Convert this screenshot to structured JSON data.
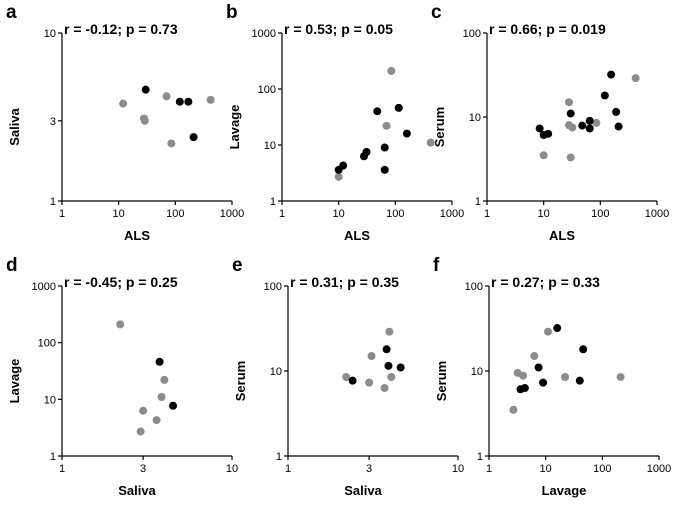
{
  "chart_data": [
    {
      "type": "scatter",
      "panel": "a",
      "title": "r = -0.12; p = 0.73",
      "xlabel": "ALS",
      "ylabel": "Saliva",
      "xscale": "log",
      "yscale": "log",
      "xlim": [
        1,
        1000
      ],
      "ylim": [
        1,
        10
      ],
      "xticks": [
        1,
        10,
        100,
        1000
      ],
      "xtick_labels": [
        "1",
        "10",
        "100",
        "1000"
      ],
      "yticks": [
        1,
        3,
        10
      ],
      "ytick_labels": [
        "1",
        "3",
        "10"
      ],
      "series": [
        {
          "name": "black",
          "color": "#000000",
          "points": [
            [
              30,
              4.6
            ],
            [
              120,
              3.9
            ],
            [
              170,
              3.9
            ],
            [
              210,
              2.4
            ]
          ]
        },
        {
          "name": "gray",
          "color": "#8c8c8c",
          "points": [
            [
              12,
              3.8
            ],
            [
              28,
              3.1
            ],
            [
              29,
              3.0
            ],
            [
              70,
              4.2
            ],
            [
              85,
              2.2
            ],
            [
              420,
              4.0
            ]
          ]
        }
      ]
    },
    {
      "type": "scatter",
      "panel": "b",
      "title": "r = 0.53; p = 0.05",
      "xlabel": "ALS",
      "ylabel": "Lavage",
      "xscale": "log",
      "yscale": "log",
      "xlim": [
        1,
        1000
      ],
      "ylim": [
        1,
        1000
      ],
      "xticks": [
        1,
        10,
        100,
        1000
      ],
      "xtick_labels": [
        "1",
        "10",
        "100",
        "1000"
      ],
      "yticks": [
        1,
        10,
        100,
        1000
      ],
      "ytick_labels": [
        "1",
        "10",
        "100",
        "1000"
      ],
      "series": [
        {
          "name": "black",
          "color": "#000000",
          "points": [
            [
              10,
              3.6
            ],
            [
              12,
              4.3
            ],
            [
              28,
              6.3
            ],
            [
              31,
              7.5
            ],
            [
              48,
              40
            ],
            [
              65,
              9
            ],
            [
              65,
              3.6
            ],
            [
              115,
              46
            ],
            [
              160,
              16
            ]
          ]
        },
        {
          "name": "gray",
          "color": "#8c8c8c",
          "points": [
            [
              10,
              2.7
            ],
            [
              70,
              22
            ],
            [
              85,
              210
            ],
            [
              420,
              11
            ]
          ]
        }
      ]
    },
    {
      "type": "scatter",
      "panel": "c",
      "title": "r = 0.66; p = 0.019",
      "xlabel": "ALS",
      "ylabel": "Serum",
      "xscale": "log",
      "yscale": "log",
      "xlim": [
        1,
        1000
      ],
      "ylim": [
        1,
        100
      ],
      "xticks": [
        1,
        10,
        100,
        1000
      ],
      "xtick_labels": [
        "1",
        "10",
        "100",
        "1000"
      ],
      "yticks": [
        1,
        10,
        100
      ],
      "ytick_labels": [
        "1",
        "10",
        "100"
      ],
      "series": [
        {
          "name": "black",
          "color": "#000000",
          "points": [
            [
              8.5,
              7.3
            ],
            [
              10,
              6.1
            ],
            [
              12,
              6.3
            ],
            [
              30,
              11
            ],
            [
              48,
              7.9
            ],
            [
              65,
              9
            ],
            [
              65,
              7.3
            ],
            [
              120,
              18
            ],
            [
              155,
              32
            ],
            [
              190,
              11.5
            ],
            [
              210,
              7.7
            ]
          ]
        },
        {
          "name": "gray",
          "color": "#8c8c8c",
          "points": [
            [
              10,
              3.5
            ],
            [
              28,
              15
            ],
            [
              28,
              8
            ],
            [
              30,
              3.3
            ],
            [
              32,
              7.5
            ],
            [
              85,
              8.5
            ],
            [
              420,
              29
            ]
          ]
        }
      ]
    },
    {
      "type": "scatter",
      "panel": "d",
      "title": "r = -0.45; p = 0.25",
      "xlabel": "Saliva",
      "ylabel": "Lavage",
      "xscale": "log",
      "yscale": "log",
      "xlim": [
        1,
        10
      ],
      "ylim": [
        1,
        1000
      ],
      "xticks": [
        1,
        3,
        10
      ],
      "xtick_labels": [
        "1",
        "3",
        "10"
      ],
      "yticks": [
        1,
        10,
        100,
        1000
      ],
      "ytick_labels": [
        "1",
        "10",
        "100",
        "1000"
      ],
      "series": [
        {
          "name": "black",
          "color": "#000000",
          "points": [
            [
              3.75,
              46
            ],
            [
              4.5,
              7.7
            ]
          ]
        },
        {
          "name": "gray",
          "color": "#8c8c8c",
          "points": [
            [
              2.2,
              210
            ],
            [
              2.9,
              2.7
            ],
            [
              3.0,
              6.3
            ],
            [
              3.6,
              4.3
            ],
            [
              3.85,
              11
            ],
            [
              4.0,
              22
            ]
          ]
        }
      ]
    },
    {
      "type": "scatter",
      "panel": "e",
      "title": "r = 0.31; p = 0.35",
      "xlabel": "Saliva",
      "ylabel": "Serum",
      "xscale": "log",
      "yscale": "log",
      "xlim": [
        1,
        10
      ],
      "ylim": [
        1,
        100
      ],
      "xticks": [
        1,
        3,
        10
      ],
      "xtick_labels": [
        "1",
        "3",
        "10"
      ],
      "yticks": [
        1,
        10,
        100
      ],
      "ytick_labels": [
        "1",
        "10",
        "100"
      ],
      "series": [
        {
          "name": "black",
          "color": "#000000",
          "points": [
            [
              2.4,
              7.7
            ],
            [
              3.8,
              18
            ],
            [
              3.9,
              11.5
            ],
            [
              4.6,
              11
            ]
          ]
        },
        {
          "name": "gray",
          "color": "#8c8c8c",
          "points": [
            [
              2.2,
              8.5
            ],
            [
              3.0,
              7.3
            ],
            [
              3.1,
              15
            ],
            [
              3.7,
              6.3
            ],
            [
              3.95,
              29
            ],
            [
              4.05,
              8.5
            ]
          ]
        }
      ]
    },
    {
      "type": "scatter",
      "panel": "f",
      "title": "r = 0.27; p = 0.33",
      "xlabel": "Lavage",
      "ylabel": "Serum",
      "xscale": "log",
      "yscale": "log",
      "xlim": [
        1,
        1000
      ],
      "ylim": [
        1,
        100
      ],
      "xticks": [
        1,
        10,
        100,
        1000
      ],
      "xtick_labels": [
        "1",
        "10",
        "100",
        "1000"
      ],
      "yticks": [
        1,
        10,
        100
      ],
      "ytick_labels": [
        "1",
        "10",
        "100"
      ],
      "series": [
        {
          "name": "black",
          "color": "#000000",
          "points": [
            [
              3.6,
              6.1
            ],
            [
              4.3,
              6.3
            ],
            [
              7.5,
              11
            ],
            [
              9,
              7.3
            ],
            [
              16,
              32
            ],
            [
              40,
              7.7
            ],
            [
              46,
              18
            ]
          ]
        },
        {
          "name": "gray",
          "color": "#8c8c8c",
          "points": [
            [
              2.7,
              3.5
            ],
            [
              3.2,
              9.5
            ],
            [
              4.0,
              8.8
            ],
            [
              6.3,
              15
            ],
            [
              11,
              29
            ],
            [
              22,
              8.5
            ],
            [
              210,
              8.5
            ]
          ]
        }
      ]
    }
  ]
}
